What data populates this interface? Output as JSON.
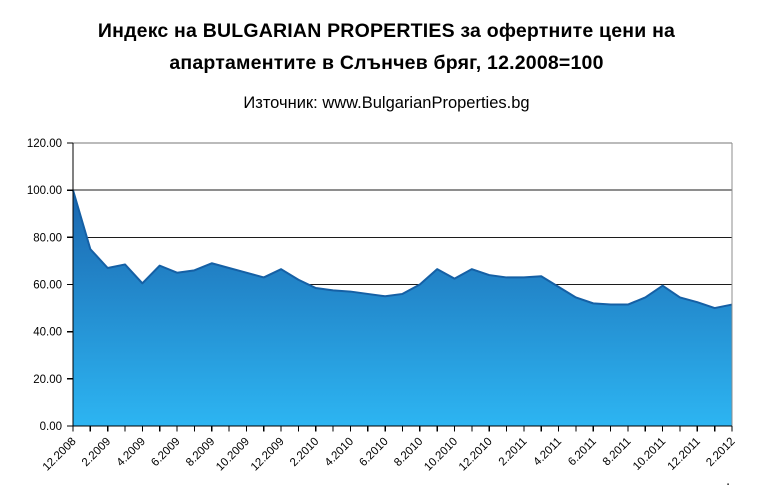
{
  "header": {
    "title_line1": "Индекс на BULGARIAN PROPERTIES за офертните цени на",
    "title_line2": "апартаментите в Слънчев бряг, 12.2008=100",
    "subtitle": "Източник: www.BulgarianProperties.bg"
  },
  "footer": {
    "mark": "."
  },
  "chart_data": {
    "type": "area",
    "title": "Индекс на BULGARIAN PROPERTIES за офертните цени на апартаментите в Слънчев бряг, 12.2008=100",
    "source_note": "Източник: www.BulgarianProperties.bg",
    "xlabel": "",
    "ylabel": "",
    "ylim": [
      0,
      120
    ],
    "ytick_step": 20,
    "y_tick_labels": [
      "120.00",
      "100.00",
      "80.00",
      "60.00",
      "40.00",
      "20.00",
      "0.00"
    ],
    "x_tick_labels": [
      "12.2008",
      "2.2009",
      "4.2009",
      "6.2009",
      "8.2009",
      "10.2009",
      "12.2009",
      "2.2010",
      "4.2010",
      "6.2010",
      "8.2010",
      "10.2010",
      "12.2010",
      "2.2011",
      "4.2011",
      "6.2011",
      "8.2011",
      "10.2011",
      "12.2011",
      "2.2012"
    ],
    "grid": "horizontal",
    "legend": "none",
    "series": [
      {
        "x": [
          "12.2008",
          "1.2009",
          "2.2009",
          "3.2009",
          "4.2009",
          "5.2009",
          "6.2009",
          "7.2009",
          "8.2009",
          "9.2009",
          "10.2009",
          "11.2009",
          "12.2009",
          "1.2010",
          "2.2010",
          "3.2010",
          "4.2010",
          "5.2010",
          "6.2010",
          "7.2010",
          "8.2010",
          "9.2010",
          "10.2010",
          "11.2010",
          "12.2010",
          "1.2011",
          "2.2011",
          "3.2011",
          "4.2011",
          "5.2011",
          "6.2011",
          "7.2011",
          "8.2011",
          "9.2011",
          "10.2011",
          "11.2011",
          "12.2011",
          "1.2012",
          "2.2012"
        ],
        "values": [
          100,
          75,
          67,
          68.5,
          60.5,
          68,
          65,
          66,
          69,
          67,
          65,
          63,
          66.5,
          62,
          58.5,
          57.5,
          57,
          56,
          55,
          56,
          60,
          66.5,
          62.5,
          66.5,
          64,
          63,
          63,
          63.5,
          59,
          54.5,
          52,
          51.5,
          51.5,
          54.5,
          59.5,
          54.5,
          52.5,
          50,
          51.5
        ]
      }
    ],
    "colors": {
      "area_top": "#1b66ae",
      "area_bottom": "#2db5f2",
      "line": "#1560a5",
      "grid": "#1c1c1c",
      "axis": "#000000",
      "border": "#8c8c8c",
      "text": "#000000"
    }
  }
}
